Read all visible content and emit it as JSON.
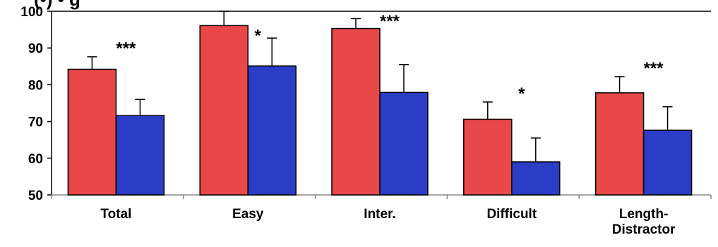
{
  "chart_data": {
    "type": "bar",
    "title": "(•) • g",
    "categories": [
      "Total",
      "Easy",
      "Inter.",
      "Difficult",
      "Length-Distractor"
    ],
    "category_label_lines": [
      [
        "Total"
      ],
      [
        "Easy"
      ],
      [
        "Inter."
      ],
      [
        "Difficult"
      ],
      [
        "Length-",
        "Distractor"
      ]
    ],
    "series": [
      {
        "color": "#e84848",
        "values": [
          84.2,
          96.1,
          95.3,
          70.6,
          77.8
        ],
        "error_upper": [
          87.6,
          100.0,
          98.0,
          75.3,
          82.2
        ]
      },
      {
        "color": "#2b3cc6",
        "values": [
          71.6,
          85.1,
          77.9,
          59.0,
          67.6
        ],
        "error_upper": [
          76.0,
          92.7,
          85.5,
          65.5,
          74.0
        ]
      }
    ],
    "significance": [
      "***",
      "*",
      "***",
      "*",
      "***"
    ],
    "ylim": [
      50,
      100
    ],
    "yticks": [
      50,
      60,
      70,
      80,
      90,
      100
    ],
    "xlabel": "",
    "ylabel": "",
    "grid": false
  }
}
